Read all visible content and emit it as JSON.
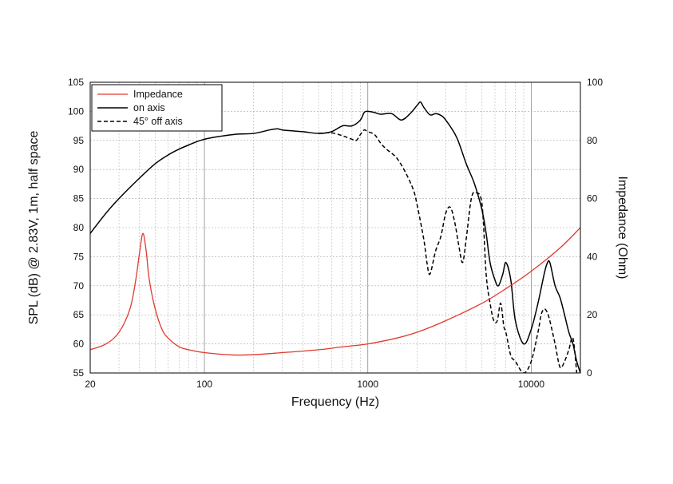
{
  "chart_data": {
    "type": "line",
    "xlabel": "Frequency (Hz)",
    "ylabel_left": "SPL (dB) @ 2.83V, 1m, half space",
    "ylabel_right": "Impedance (Ohm)",
    "x_scale": "log",
    "xlim": [
      20,
      20000
    ],
    "ylim_left": [
      55,
      105
    ],
    "ylim_right": [
      0,
      100
    ],
    "x_ticks": [
      20,
      100,
      1000,
      10000
    ],
    "x_tick_labels": [
      "20",
      "100",
      "1000",
      "10000"
    ],
    "y_left_ticks": [
      55,
      60,
      65,
      70,
      75,
      80,
      85,
      90,
      95,
      100,
      105
    ],
    "y_right_ticks": [
      0,
      20,
      40,
      60,
      80,
      100
    ],
    "grid": true,
    "legend_position": "top-left",
    "legend": [
      "Impedance",
      "on axis",
      "45° off axis"
    ],
    "series": [
      {
        "name": "Impedance",
        "axis": "right",
        "color": "#e03a2f",
        "style": "solid",
        "x": [
          20,
          25,
          30,
          35,
          38,
          40,
          42,
          44,
          46,
          50,
          55,
          60,
          70,
          80,
          100,
          150,
          200,
          300,
          500,
          700,
          1000,
          1500,
          2000,
          3000,
          5000,
          7000,
          10000,
          15000,
          20000
        ],
        "y": [
          8,
          10,
          14,
          22,
          32,
          41,
          48,
          42,
          32,
          22,
          15,
          12,
          9,
          8,
          7,
          6.2,
          6.3,
          7,
          8,
          9,
          10,
          12,
          14,
          18,
          24,
          29,
          35,
          43,
          50
        ]
      },
      {
        "name": "on axis",
        "axis": "left",
        "color": "#000000",
        "style": "solid",
        "x": [
          20,
          25,
          30,
          40,
          50,
          60,
          70,
          80,
          100,
          150,
          200,
          250,
          280,
          300,
          400,
          500,
          600,
          700,
          800,
          900,
          950,
          1000,
          1100,
          1200,
          1400,
          1600,
          1800,
          2000,
          2100,
          2200,
          2400,
          2600,
          2800,
          3000,
          3500,
          4000,
          4500,
          5000,
          5300,
          5600,
          6000,
          6300,
          6700,
          7000,
          7500,
          8000,
          9000,
          10000,
          11000,
          12000,
          12500,
          13000,
          14000,
          15000,
          16000,
          17000,
          18000,
          19000,
          20000
        ],
        "y": [
          79,
          82.5,
          85,
          88.5,
          91,
          92.5,
          93.5,
          94.2,
          95.2,
          96,
          96.2,
          96.8,
          97,
          96.8,
          96.5,
          96.2,
          96.5,
          97.5,
          97.5,
          98.5,
          99.8,
          100,
          99.8,
          99.5,
          99.6,
          98.5,
          99.5,
          101,
          101.6,
          100.7,
          99.4,
          99.6,
          99.3,
          98.5,
          95.5,
          91,
          87.5,
          83,
          79,
          74,
          71,
          70,
          72,
          74,
          71,
          64,
          60,
          62.5,
          67,
          72,
          73.8,
          74,
          70,
          68,
          65,
          62,
          60,
          57,
          55
        ]
      },
      {
        "name": "45° off axis",
        "axis": "left",
        "color": "#000000",
        "style": "dashed",
        "x": [
          500,
          600,
          700,
          800,
          850,
          900,
          950,
          1000,
          1100,
          1200,
          1300,
          1500,
          1700,
          1900,
          2000,
          2200,
          2300,
          2400,
          2600,
          2800,
          3000,
          3200,
          3400,
          3600,
          3800,
          4000,
          4300,
          4600,
          5000,
          5300,
          5600,
          5900,
          6200,
          6500,
          6800,
          7000,
          7500,
          8000,
          9000,
          10000,
          11000,
          11500,
          12000,
          12500,
          13000,
          14000,
          15000,
          16000,
          17000,
          18000,
          19000
        ],
        "y": [
          96.2,
          96.3,
          95.8,
          95.2,
          95,
          96,
          96.8,
          96.5,
          96,
          94.5,
          93.5,
          92,
          89.5,
          86.5,
          84,
          78,
          74,
          72,
          76,
          78.5,
          82.5,
          83.5,
          81,
          77,
          74,
          78,
          85,
          86,
          84,
          72,
          67,
          64,
          64,
          67,
          63,
          62,
          58,
          57,
          55,
          57,
          62,
          65,
          66,
          65.5,
          64,
          60,
          56,
          57,
          59,
          61,
          55
        ]
      }
    ]
  }
}
